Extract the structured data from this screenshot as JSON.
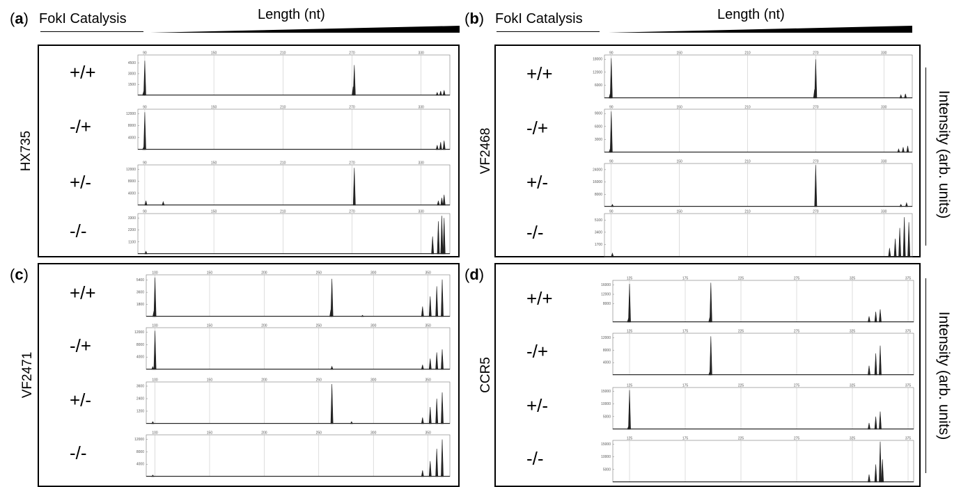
{
  "header": {
    "fokl_label": "FokI Catalysis",
    "length_label": "Length (nt)",
    "intensity_label": "Intensity (arb. units)"
  },
  "chart_data": [
    {
      "type": "line",
      "panel": "a",
      "sample": "HX735",
      "xticks": [
        90,
        150,
        210,
        270,
        330
      ],
      "xlim": [
        84,
        355
      ],
      "traces": [
        {
          "condition": "+/+",
          "yticks": [
            1500,
            3000,
            4500
          ],
          "ylim": [
            0,
            5600
          ],
          "peaks": [
            [
              90,
              4800
            ],
            [
              89,
              500
            ],
            [
              272,
              4200
            ],
            [
              271,
              1200
            ],
            [
              344,
              400
            ],
            [
              347,
              600
            ],
            [
              350,
              700
            ]
          ]
        },
        {
          "condition": "-/+",
          "yticks": [
            4000,
            8000,
            12000
          ],
          "ylim": [
            0,
            13500
          ],
          "peaks": [
            [
              90,
              12500
            ],
            [
              89,
              800
            ],
            [
              344,
              1500
            ],
            [
              347,
              2500
            ],
            [
              350,
              3000
            ]
          ]
        },
        {
          "condition": "+/-",
          "yticks": [
            4000,
            8000,
            12000
          ],
          "ylim": [
            0,
            13500
          ],
          "peaks": [
            [
              91,
              1500
            ],
            [
              106,
              1200
            ],
            [
              272,
              12500
            ],
            [
              345,
              1500
            ],
            [
              348,
              2500
            ],
            [
              350,
              3500
            ]
          ]
        },
        {
          "condition": "-/-",
          "yticks": [
            1100,
            2200,
            3300
          ],
          "ylim": [
            0,
            3700
          ],
          "peaks": [
            [
              91,
              250
            ],
            [
              340,
              1600
            ],
            [
              345,
              3000
            ],
            [
              348,
              3500
            ],
            [
              350,
              3300
            ]
          ]
        }
      ]
    },
    {
      "type": "line",
      "panel": "b",
      "sample": "VF2468",
      "xticks": [
        90,
        150,
        210,
        270,
        330
      ],
      "xlim": [
        84,
        355
      ],
      "traces": [
        {
          "condition": "+/+",
          "yticks": [
            6000,
            12000,
            18000
          ],
          "ylim": [
            0,
            20000
          ],
          "peaks": [
            [
              90,
              18500
            ],
            [
              89,
              2000
            ],
            [
              270,
              18000
            ],
            [
              269,
              4000
            ],
            [
              345,
              1500
            ],
            [
              349,
              2000
            ]
          ]
        },
        {
          "condition": "-/+",
          "yticks": [
            3000,
            6000,
            9000
          ],
          "ylim": [
            0,
            10000
          ],
          "peaks": [
            [
              90,
              9500
            ],
            [
              89,
              800
            ],
            [
              343,
              800
            ],
            [
              347,
              1200
            ],
            [
              351,
              1500
            ]
          ]
        },
        {
          "condition": "+/-",
          "yticks": [
            8000,
            16000,
            24000
          ],
          "ylim": [
            0,
            28000
          ],
          "peaks": [
            [
              91,
              1500
            ],
            [
              270,
              27000
            ],
            [
              345,
              1500
            ],
            [
              350,
              2500
            ]
          ]
        },
        {
          "condition": "-/-",
          "yticks": [
            1700,
            3400,
            5100
          ],
          "ylim": [
            0,
            6000
          ],
          "peaks": [
            [
              91,
              500
            ],
            [
              335,
              1200
            ],
            [
              340,
              2500
            ],
            [
              344,
              4000
            ],
            [
              348,
              5500
            ],
            [
              352,
              4800
            ]
          ]
        }
      ]
    },
    {
      "type": "line",
      "panel": "c",
      "sample": "VF2471",
      "xticks": [
        100,
        150,
        200,
        250,
        300,
        350
      ],
      "xlim": [
        92,
        370
      ],
      "traces": [
        {
          "condition": "+/+",
          "yticks": [
            1800,
            3600,
            5400
          ],
          "ylim": [
            0,
            6200
          ],
          "peaks": [
            [
              100,
              5800
            ],
            [
              99,
              800
            ],
            [
              262,
              5600
            ],
            [
              261,
              1000
            ],
            [
              290,
              200
            ],
            [
              345,
              1500
            ],
            [
              352,
              3000
            ],
            [
              358,
              4500
            ],
            [
              363,
              5500
            ]
          ]
        },
        {
          "condition": "-/+",
          "yticks": [
            4000,
            8000,
            12000
          ],
          "ylim": [
            0,
            13500
          ],
          "peaks": [
            [
              100,
              12500
            ],
            [
              98,
              900
            ],
            [
              262,
              1000
            ],
            [
              345,
              1500
            ],
            [
              352,
              3500
            ],
            [
              358,
              5500
            ],
            [
              363,
              6500
            ]
          ]
        },
        {
          "condition": "+/-",
          "yticks": [
            1200,
            2400,
            3600
          ],
          "ylim": [
            0,
            4000
          ],
          "peaks": [
            [
              98,
              200
            ],
            [
              262,
              3800
            ],
            [
              280,
              200
            ],
            [
              345,
              600
            ],
            [
              352,
              1600
            ],
            [
              358,
              2400
            ],
            [
              363,
              3000
            ]
          ]
        },
        {
          "condition": "-/-",
          "yticks": [
            4000,
            8000,
            12000
          ],
          "ylim": [
            0,
            13500
          ],
          "peaks": [
            [
              98,
              500
            ],
            [
              345,
              2000
            ],
            [
              352,
              5000
            ],
            [
              358,
              9000
            ],
            [
              363,
              12000
            ]
          ]
        }
      ]
    },
    {
      "type": "line",
      "panel": "d",
      "sample": "CCR5",
      "xticks": [
        125,
        175,
        225,
        275,
        325,
        375
      ],
      "xlim": [
        110,
        380
      ],
      "traces": [
        {
          "condition": "+/+",
          "yticks": [
            8000,
            12000,
            16000
          ],
          "ylim": [
            0,
            18000
          ],
          "peaks": [
            [
              125,
              16500
            ],
            [
              124,
              1500
            ],
            [
              198,
              17000
            ],
            [
              197,
              2000
            ],
            [
              340,
              2500
            ],
            [
              346,
              4500
            ],
            [
              350,
              5500
            ]
          ]
        },
        {
          "condition": "-/+",
          "yticks": [
            4000,
            8000,
            12000
          ],
          "ylim": [
            0,
            13500
          ],
          "peaks": [
            [
              198,
              12500
            ],
            [
              197,
              1000
            ],
            [
              340,
              3000
            ],
            [
              346,
              7000
            ],
            [
              350,
              9500
            ]
          ]
        },
        {
          "condition": "+/-",
          "yticks": [
            5000,
            10000,
            15000
          ],
          "ylim": [
            0,
            16500
          ],
          "peaks": [
            [
              125,
              15500
            ],
            [
              124,
              1000
            ],
            [
              340,
              2500
            ],
            [
              346,
              5000
            ],
            [
              350,
              7000
            ]
          ]
        },
        {
          "condition": "-/-",
          "yticks": [
            5000,
            10000,
            15000
          ],
          "ylim": [
            0,
            16500
          ],
          "peaks": [
            [
              340,
              3000
            ],
            [
              346,
              7000
            ],
            [
              350,
              16000
            ],
            [
              352,
              9000
            ]
          ]
        }
      ]
    }
  ]
}
